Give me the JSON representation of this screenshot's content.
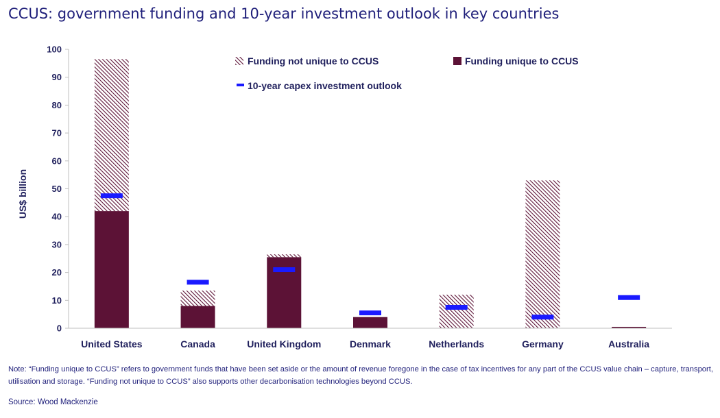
{
  "title": "CCUS: government funding and 10-year investment outlook in key countries",
  "note": "Note:  “Funding unique to CCUS”  refers to government  funds that have been  set aside or the amount of revenue  foregone  in the  case of tax incentives for any part of the CCUS value chain – capture, transport, utilisation and storage. “Funding not unique to CCUS”  also supports other decarbonisation technologies beyond CCUS.",
  "source": "Source:  Wood Mackenzie",
  "colors": {
    "unique": "#5c1236",
    "hatch_bg": "#ffffff",
    "hatch_line": "#5c1236",
    "outlook": "#1a1aff",
    "axis": "#bfbfbf",
    "text": "#1f1f5c"
  },
  "chart_data": {
    "type": "bar",
    "stacked": true,
    "categories": [
      "United States",
      "Canada",
      "United Kingdom",
      "Denmark",
      "Netherlands",
      "Germany",
      "Australia"
    ],
    "series": [
      {
        "name": "Funding unique to CCUS",
        "values": [
          42,
          8,
          25.5,
          4,
          0,
          0,
          0.5
        ]
      },
      {
        "name": "Funding not unique to CCUS",
        "values": [
          54.5,
          5.5,
          1,
          0,
          12,
          53,
          0
        ]
      }
    ],
    "markers": {
      "name": "10-year capex investment outlook",
      "values": [
        47.5,
        16.5,
        21,
        5.5,
        7.5,
        4,
        11
      ]
    },
    "ylabel": "US$ billion",
    "xlabel": "",
    "ylim": [
      0,
      100
    ],
    "yticks": [
      0,
      10,
      20,
      30,
      40,
      50,
      60,
      70,
      80,
      90,
      100
    ],
    "grid": false,
    "legend_position": "top-center"
  }
}
